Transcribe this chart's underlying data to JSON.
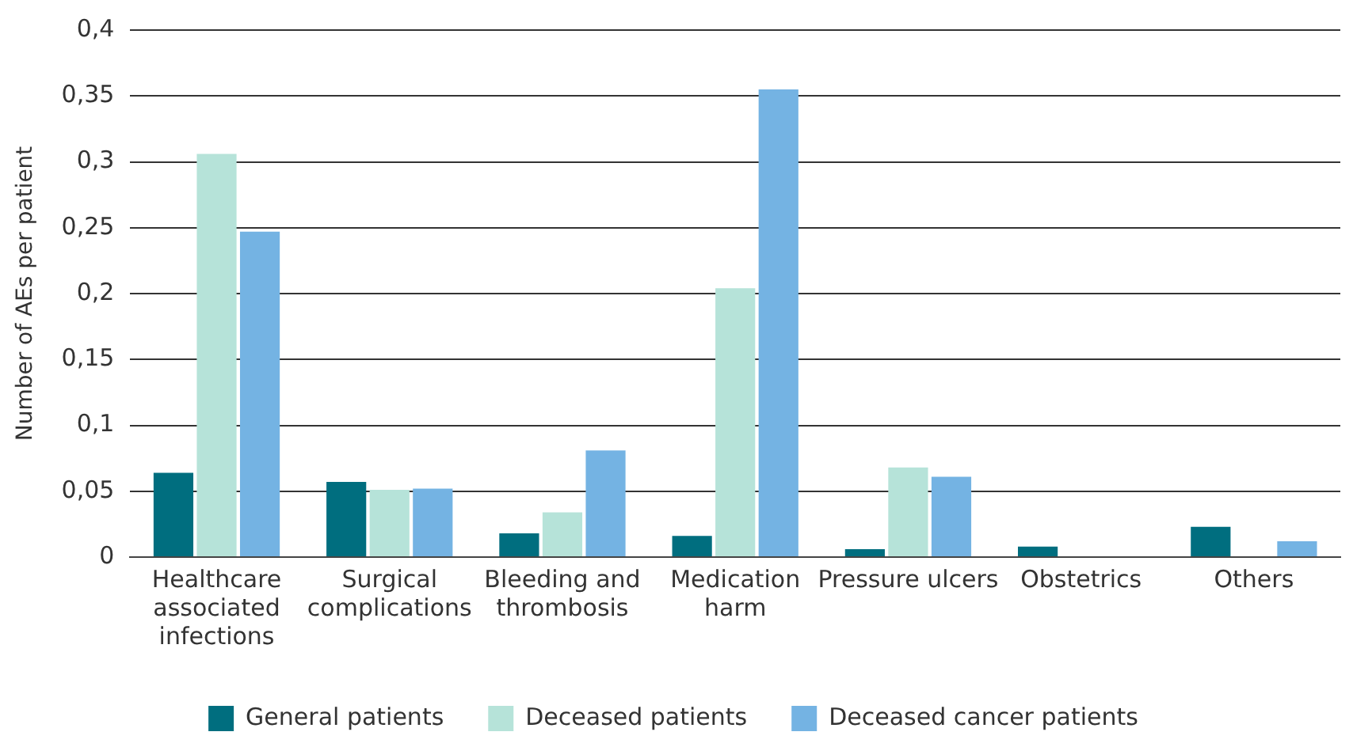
{
  "chart_data": {
    "type": "bar",
    "ylabel": "Number of AEs per patient",
    "categories": [
      "Healthcare\nassociated\ninfections",
      "Surgical\ncomplications",
      "Bleeding and\nthrombosis",
      "Medication\nharm",
      "Pressure ulcers",
      "Obstetrics",
      "Others"
    ],
    "series": [
      {
        "name": "General patients",
        "color": "#006e7f",
        "values": [
          0.064,
          0.057,
          0.018,
          0.016,
          0.006,
          0.008,
          0.023
        ]
      },
      {
        "name": "Deceased patients",
        "color": "#b6e3d9",
        "values": [
          0.306,
          0.051,
          0.034,
          0.204,
          0.068,
          null,
          null
        ]
      },
      {
        "name": "Deceased cancer patients",
        "color": "#74b3e3",
        "values": [
          0.247,
          0.052,
          0.081,
          0.355,
          0.061,
          null,
          0.012
        ]
      }
    ],
    "ylim": [
      0,
      0.4
    ],
    "yticks": [
      0,
      {
        "value": 0.05,
        "label": "0,05"
      },
      {
        "value": 0.1,
        "label": "0,1"
      },
      {
        "value": 0.15,
        "label": "0,15"
      },
      {
        "value": 0.2,
        "label": "0,2"
      },
      {
        "value": 0.25,
        "label": "0,25"
      },
      {
        "value": 0.3,
        "label": "0,3"
      },
      {
        "value": 0.35,
        "label": "0,35"
      },
      {
        "value": 0.4,
        "label": "0,4"
      }
    ],
    "grid": "y",
    "legend": "bottom"
  }
}
